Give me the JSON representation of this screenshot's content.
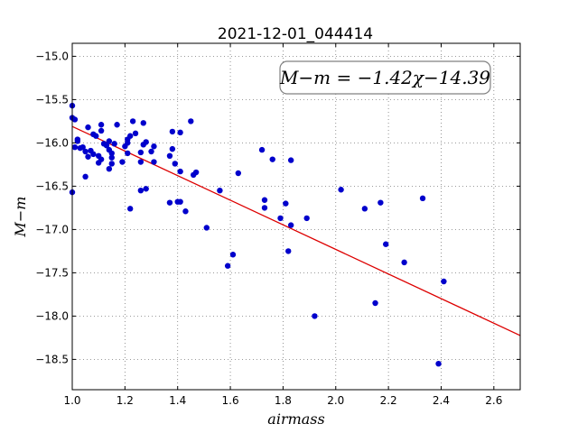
{
  "chart_data": {
    "type": "scatter",
    "title": "2021-12-01_044414",
    "xlabel": "airmass",
    "ylabel": "M−m",
    "xlim": [
      1.0,
      2.7
    ],
    "ylim": [
      -18.85,
      -14.85
    ],
    "x_ticks": [
      1.0,
      1.2,
      1.4,
      1.6,
      1.8,
      2.0,
      2.2,
      2.4,
      2.6
    ],
    "x_tick_labels": [
      "1.0",
      "1.2",
      "1.4",
      "1.6",
      "1.8",
      "2.0",
      "2.2",
      "2.4",
      "2.6"
    ],
    "y_ticks": [
      -15.0,
      -15.5,
      -16.0,
      -16.5,
      -17.0,
      -17.5,
      -18.0,
      -18.5
    ],
    "y_tick_labels": [
      "−15.0",
      "−15.5",
      "−16.0",
      "−16.5",
      "−17.0",
      "−17.5",
      "−18.0",
      "−18.5"
    ],
    "grid": true,
    "annotation": "M−m = −1.42χ−14.39",
    "fit": {
      "slope": -1.42,
      "intercept": -14.39,
      "color": "#dd0000"
    },
    "point_color": "#0000cc",
    "points": [
      {
        "x": 1.0,
        "y": -15.57
      },
      {
        "x": 1.0,
        "y": -15.71
      },
      {
        "x": 1.0,
        "y": -16.57
      },
      {
        "x": 1.01,
        "y": -15.73
      },
      {
        "x": 1.01,
        "y": -16.05
      },
      {
        "x": 1.02,
        "y": -15.96
      },
      {
        "x": 1.02,
        "y": -15.98
      },
      {
        "x": 1.03,
        "y": -16.06
      },
      {
        "x": 1.04,
        "y": -16.05
      },
      {
        "x": 1.05,
        "y": -16.39
      },
      {
        "x": 1.05,
        "y": -16.1
      },
      {
        "x": 1.06,
        "y": -15.82
      },
      {
        "x": 1.06,
        "y": -16.16
      },
      {
        "x": 1.07,
        "y": -16.09
      },
      {
        "x": 1.08,
        "y": -15.9
      },
      {
        "x": 1.08,
        "y": -16.13
      },
      {
        "x": 1.09,
        "y": -15.92
      },
      {
        "x": 1.1,
        "y": -16.15
      },
      {
        "x": 1.1,
        "y": -16.23
      },
      {
        "x": 1.11,
        "y": -15.79
      },
      {
        "x": 1.11,
        "y": -15.86
      },
      {
        "x": 1.11,
        "y": -16.19
      },
      {
        "x": 1.12,
        "y": -16.01
      },
      {
        "x": 1.13,
        "y": -16.03
      },
      {
        "x": 1.14,
        "y": -15.98
      },
      {
        "x": 1.14,
        "y": -16.08
      },
      {
        "x": 1.14,
        "y": -16.3
      },
      {
        "x": 1.15,
        "y": -16.12
      },
      {
        "x": 1.15,
        "y": -16.17
      },
      {
        "x": 1.15,
        "y": -16.24
      },
      {
        "x": 1.16,
        "y": -16.01
      },
      {
        "x": 1.17,
        "y": -15.79
      },
      {
        "x": 1.19,
        "y": -16.22
      },
      {
        "x": 1.2,
        "y": -16.04
      },
      {
        "x": 1.21,
        "y": -15.96
      },
      {
        "x": 1.21,
        "y": -16.0
      },
      {
        "x": 1.21,
        "y": -16.12
      },
      {
        "x": 1.22,
        "y": -15.92
      },
      {
        "x": 1.22,
        "y": -16.76
      },
      {
        "x": 1.23,
        "y": -15.75
      },
      {
        "x": 1.24,
        "y": -15.89
      },
      {
        "x": 1.26,
        "y": -16.11
      },
      {
        "x": 1.26,
        "y": -16.22
      },
      {
        "x": 1.26,
        "y": -16.55
      },
      {
        "x": 1.27,
        "y": -15.77
      },
      {
        "x": 1.27,
        "y": -16.02
      },
      {
        "x": 1.28,
        "y": -16.53
      },
      {
        "x": 1.28,
        "y": -15.99
      },
      {
        "x": 1.3,
        "y": -16.1
      },
      {
        "x": 1.31,
        "y": -16.22
      },
      {
        "x": 1.31,
        "y": -16.04
      },
      {
        "x": 1.37,
        "y": -16.15
      },
      {
        "x": 1.37,
        "y": -16.69
      },
      {
        "x": 1.38,
        "y": -15.87
      },
      {
        "x": 1.38,
        "y": -16.07
      },
      {
        "x": 1.39,
        "y": -16.24
      },
      {
        "x": 1.4,
        "y": -16.68
      },
      {
        "x": 1.41,
        "y": -16.68
      },
      {
        "x": 1.41,
        "y": -15.88
      },
      {
        "x": 1.41,
        "y": -16.33
      },
      {
        "x": 1.43,
        "y": -16.79
      },
      {
        "x": 1.45,
        "y": -15.75
      },
      {
        "x": 1.46,
        "y": -16.37
      },
      {
        "x": 1.47,
        "y": -16.34
      },
      {
        "x": 1.51,
        "y": -16.98
      },
      {
        "x": 1.56,
        "y": -16.55
      },
      {
        "x": 1.59,
        "y": -17.42
      },
      {
        "x": 1.61,
        "y": -17.29
      },
      {
        "x": 1.63,
        "y": -16.35
      },
      {
        "x": 1.72,
        "y": -16.08
      },
      {
        "x": 1.73,
        "y": -16.66
      },
      {
        "x": 1.73,
        "y": -16.75
      },
      {
        "x": 1.76,
        "y": -16.19
      },
      {
        "x": 1.79,
        "y": -16.87
      },
      {
        "x": 1.81,
        "y": -16.7
      },
      {
        "x": 1.82,
        "y": -17.25
      },
      {
        "x": 1.83,
        "y": -16.2
      },
      {
        "x": 1.83,
        "y": -16.95
      },
      {
        "x": 1.89,
        "y": -16.87
      },
      {
        "x": 1.92,
        "y": -18.0
      },
      {
        "x": 2.02,
        "y": -16.54
      },
      {
        "x": 2.11,
        "y": -16.76
      },
      {
        "x": 2.15,
        "y": -17.85
      },
      {
        "x": 2.17,
        "y": -16.69
      },
      {
        "x": 2.19,
        "y": -17.17
      },
      {
        "x": 2.26,
        "y": -17.38
      },
      {
        "x": 2.33,
        "y": -16.64
      },
      {
        "x": 2.39,
        "y": -18.55
      },
      {
        "x": 2.41,
        "y": -17.6
      }
    ]
  }
}
